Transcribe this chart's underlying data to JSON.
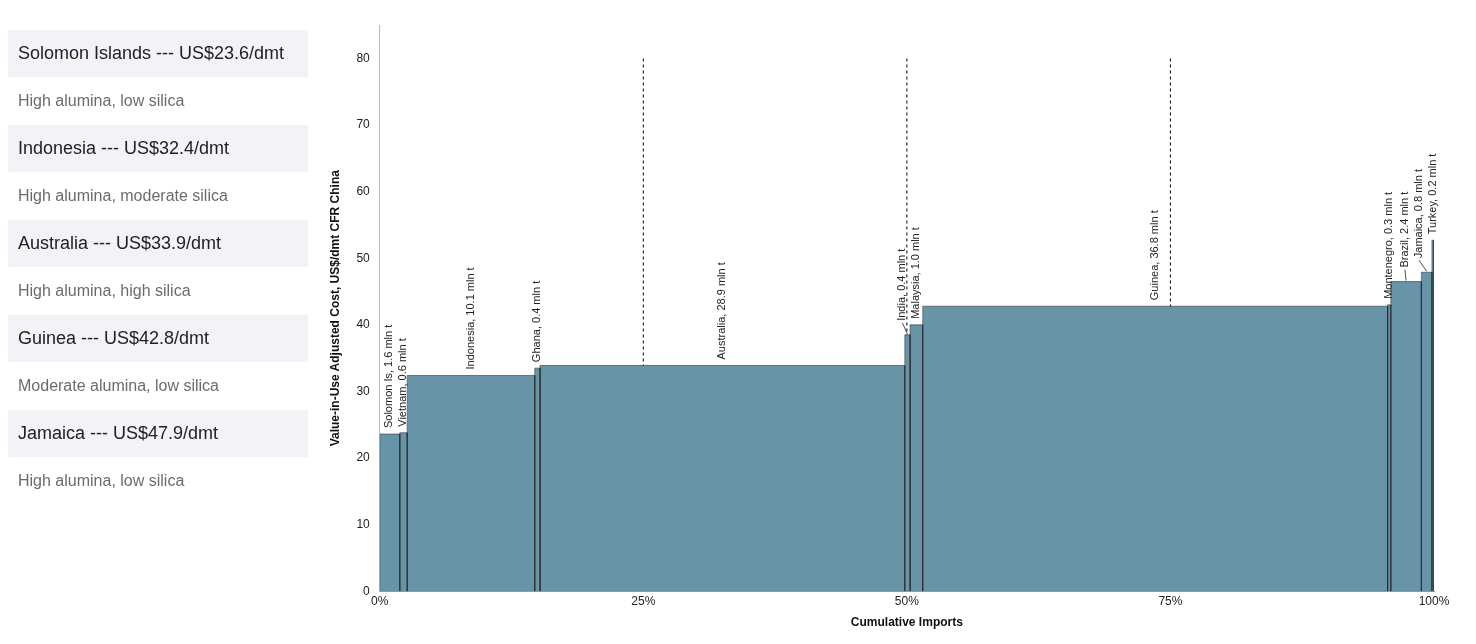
{
  "chart_data": [
    {
      "type": "other",
      "annotations": [
        "Solomon Islands --- US$23.6/dmt",
        "High alumina, low silica",
        "Indonesia --- US$32.4/dmt",
        "High alumina, moderate silica",
        "Australia --- US$33.9/dmt",
        "High alumina, high silica",
        "Guinea --- US$42.8/dmt",
        "Moderate alumina, low silica",
        "Jamaica --- US$47.9/dmt",
        "High alumina, low silica"
      ]
    },
    {
      "type": "histogram",
      "xlabel": "Cumulative Imports",
      "ylabel": "Value-in-Use Adjusted Cost, US$/dmt CFR China",
      "color": "#6894a8",
      "bins": [
        0,
        1.9,
        2.6,
        14.7,
        15.2,
        49.8,
        50.3,
        51.5,
        95.6,
        95.9,
        98.8,
        99.8,
        100
      ],
      "values": [
        23.6,
        23.8,
        32.4,
        33.5,
        33.9,
        38.5,
        40,
        42.8,
        43,
        46.5,
        47.9,
        52.7
      ],
      "xlim": [
        0,
        100
      ],
      "xticks": [
        {
          "value": 0,
          "label": "0%"
        },
        {
          "value": 25,
          "label": "25%"
        },
        {
          "value": 50,
          "label": "50%"
        },
        {
          "value": 75,
          "label": "75%"
        },
        {
          "value": 100,
          "label": "100%"
        }
      ],
      "ylim": [
        0,
        85
      ],
      "yticks": [
        0,
        10,
        20,
        30,
        40,
        50,
        60,
        70,
        80
      ],
      "grid": false,
      "legend": false,
      "ref_lines": [
        {
          "axis": "x",
          "value": 25,
          "line_style": "dashed"
        },
        {
          "axis": "x",
          "value": 50,
          "line_style": "dashed"
        },
        {
          "axis": "x",
          "value": 75,
          "line_style": "dashed"
        }
      ],
      "annotations": [
        {
          "text": "Solomon Is, 1.6 mln t",
          "x": 0.95,
          "y": 23.6
        },
        {
          "text": "Vietnam, 0.6 mln t",
          "x": 2.25,
          "y": 23.8
        },
        {
          "text": "Indonesia, 10.1 mln t",
          "x": 8.65,
          "y": 32.4
        },
        {
          "text": "Ghana, 0.4 mln t",
          "x": 14.95,
          "y": 33.5
        },
        {
          "text": "Australia, 28.9 mln t",
          "x": 32.5,
          "y": 33.9
        },
        {
          "text": "India, 0.4 mln t",
          "x": 50.05,
          "y": 38.5
        },
        {
          "text": "Malaysia, 1.0 mln t",
          "x": 50.9,
          "y": 40
        },
        {
          "text": "Guinea, 36.8 mln t",
          "x": 73.55,
          "y": 42.8
        },
        {
          "text": "Montenegro, 0.3 mln t",
          "x": 95.75,
          "y": 43
        },
        {
          "text": "Brazil, 2.4 mln t",
          "x": 97.35,
          "y": 46.5
        },
        {
          "text": "Jamaica, 0.8 mln t",
          "x": 99.3,
          "y": 47.9
        },
        {
          "text": "Turkey, 0.2 mln t",
          "x": 99.9,
          "y": 52.7
        }
      ]
    }
  ]
}
